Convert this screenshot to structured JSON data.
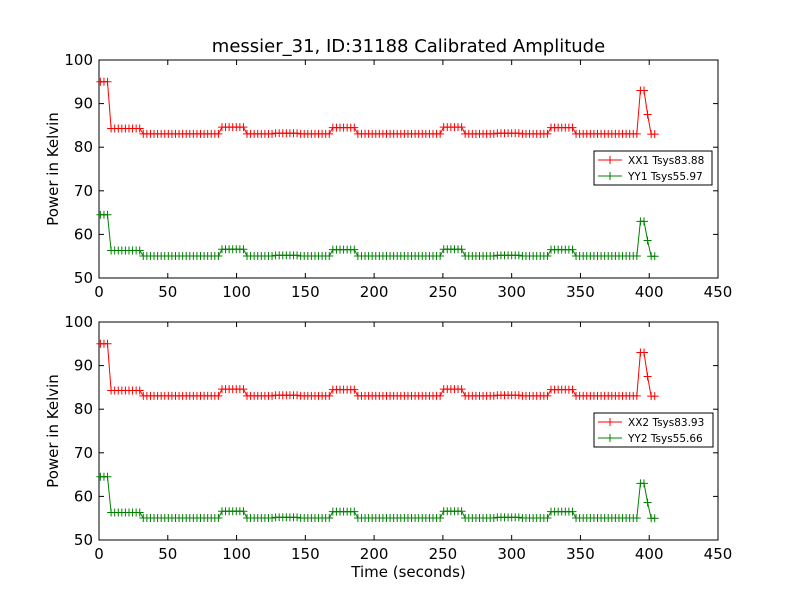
{
  "chart_data": [
    {
      "type": "line",
      "title": "messier_31, ID:31188 Calibrated Amplitude",
      "xlabel": "",
      "ylabel": "Power in Kelvin",
      "xlim": [
        0,
        450
      ],
      "ylim": [
        50,
        100
      ],
      "xticks": [
        0,
        50,
        100,
        150,
        200,
        250,
        300,
        350,
        400,
        450
      ],
      "yticks": [
        50,
        60,
        70,
        80,
        90,
        100
      ],
      "legend_position": "center-right",
      "series": [
        {
          "name": "XX1 Tsys83.88",
          "color": "#ff0000",
          "base": 83.0,
          "start": 95.0,
          "spike": 93.0
        },
        {
          "name": "YY1 Tsys55.97",
          "color": "#008000",
          "base": 55.0,
          "start": 64.5,
          "spike": 63.0
        }
      ]
    },
    {
      "type": "line",
      "title": "",
      "xlabel": "Time (seconds)",
      "ylabel": "Power in Kelvin",
      "xlim": [
        0,
        450
      ],
      "ylim": [
        50,
        100
      ],
      "xticks": [
        0,
        50,
        100,
        150,
        200,
        250,
        300,
        350,
        400,
        450
      ],
      "yticks": [
        50,
        60,
        70,
        80,
        90,
        100
      ],
      "legend_position": "center-right",
      "series": [
        {
          "name": "XX2 Tsys83.93",
          "color": "#ff0000",
          "base": 83.0,
          "start": 95.0,
          "spike": 93.0
        },
        {
          "name": "YY2 Tsys55.66",
          "color": "#008000",
          "base": 55.0,
          "start": 64.5,
          "spike": 63.0
        }
      ]
    }
  ]
}
